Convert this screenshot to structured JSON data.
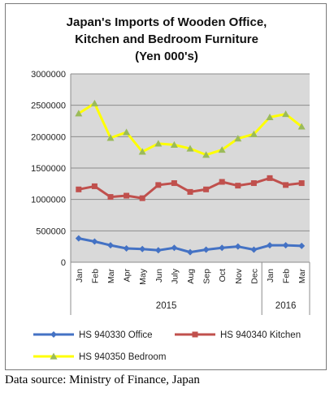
{
  "chart_data": {
    "type": "line",
    "title": [
      "Japan's Imports of Wooden Office,",
      "Kitchen and Bedroom Furniture",
      "(Yen 000's)"
    ],
    "categories": [
      "Jan",
      "Feb",
      "Mar",
      "Apr",
      "May",
      "Jun",
      "July",
      "Aug",
      "Sep",
      "Oct",
      "Nov",
      "Dec",
      "Jan",
      "Feb",
      "Mar"
    ],
    "year_groups": [
      {
        "label": "2015",
        "start": 0,
        "end": 11
      },
      {
        "label": "2016",
        "start": 12,
        "end": 14
      }
    ],
    "ylim": [
      0,
      3000000
    ],
    "yticks": [
      "0",
      "500000",
      "1000000",
      "1500000",
      "2000000",
      "2500000",
      "3000000"
    ],
    "ytick_values": [
      0,
      500000,
      1000000,
      1500000,
      2000000,
      2500000,
      3000000
    ],
    "grid": true,
    "legend_position": "bottom",
    "series": [
      {
        "name": "HS 940330 Office",
        "color": "#4472C4",
        "marker": "diamond",
        "values": [
          380000,
          330000,
          270000,
          220000,
          210000,
          190000,
          230000,
          160000,
          200000,
          230000,
          250000,
          200000,
          270000,
          270000,
          260000
        ]
      },
      {
        "name": "HS 940340 Kitchen",
        "color": "#C0504D",
        "marker": "square",
        "values": [
          1160000,
          1210000,
          1040000,
          1060000,
          1020000,
          1230000,
          1260000,
          1120000,
          1160000,
          1280000,
          1220000,
          1260000,
          1340000,
          1230000,
          1260000
        ]
      },
      {
        "name": "HS 940350 Bedroom",
        "color": "#FFFF00",
        "marker_color": "#9BBB59",
        "marker": "triangle",
        "values": [
          2370000,
          2530000,
          1980000,
          2070000,
          1760000,
          1890000,
          1870000,
          1810000,
          1710000,
          1790000,
          1970000,
          2040000,
          2310000,
          2360000,
          2160000
        ]
      }
    ]
  },
  "source_text": "Data source: Ministry of Finance, Japan"
}
